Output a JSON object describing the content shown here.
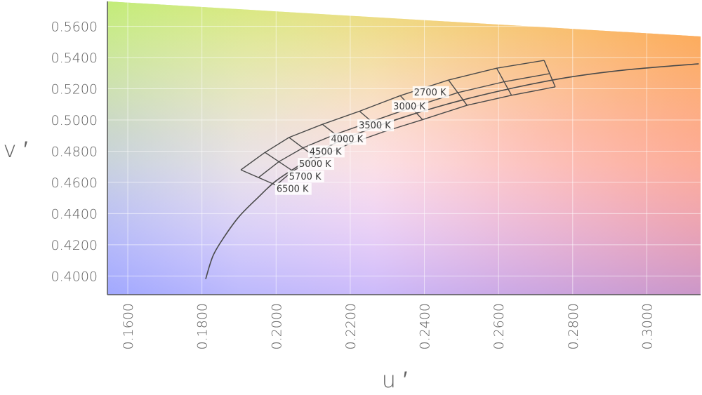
{
  "chart_data": {
    "type": "line",
    "title": "",
    "xlabel": "u ′",
    "ylabel": "v ′",
    "xlim": [
      0.1545,
      0.3145
    ],
    "ylim": [
      0.388,
      0.576
    ],
    "x_ticks": [
      "0.1600",
      "0.1800",
      "0.2000",
      "0.2200",
      "0.2400",
      "0.2600",
      "0.2800",
      "0.3000"
    ],
    "y_ticks": [
      "0.4000",
      "0.4200",
      "0.4400",
      "0.4600",
      "0.4800",
      "0.5000",
      "0.5200",
      "0.5400",
      "0.5600"
    ],
    "grid": true,
    "background": "CIE 1976 u′v′ chromaticity colour gradient",
    "series": [
      {
        "type": "line",
        "color": "#4a4a4a",
        "x": [
          0.181,
          0.183,
          0.186,
          0.19,
          0.195,
          0.2,
          0.207,
          0.215,
          0.225,
          0.236,
          0.249,
          0.263,
          0.278,
          0.294,
          0.314
        ],
        "y": [
          0.398,
          0.413,
          0.425,
          0.438,
          0.45,
          0.461,
          0.472,
          0.484,
          0.494,
          0.503,
          0.512,
          0.52,
          0.527,
          0.532,
          0.536
        ]
      }
    ],
    "cct_quadrangles": {
      "color": "#4a4a4a",
      "temperatures": [
        "6500 K",
        "5700 K",
        "5000 K",
        "4500 K",
        "4000 K",
        "3500 K",
        "3000 K",
        "2700 K"
      ],
      "boundary_outer": {
        "x": [
          0.1905,
          0.197,
          0.2035,
          0.2125,
          0.2225,
          0.2335,
          0.2465,
          0.2595,
          0.2723
        ],
        "y": [
          0.468,
          0.4792,
          0.4888,
          0.4972,
          0.5056,
          0.5156,
          0.5256,
          0.5332,
          0.5382
        ]
      },
      "boundary_inner": {
        "x": [
          0.2,
          0.2045,
          0.211,
          0.2195,
          0.229,
          0.2395,
          0.2515,
          0.2635,
          0.2753
        ],
        "y": [
          0.4582,
          0.4673,
          0.4754,
          0.4844,
          0.4924,
          0.5002,
          0.5094,
          0.5158,
          0.5212
        ]
      }
    },
    "annotations": [
      {
        "text": "6500 K",
        "x": 0.2001,
        "y": 0.4538
      },
      {
        "text": "5700 K",
        "x": 0.2035,
        "y": 0.4618
      },
      {
        "text": "5000 K",
        "x": 0.2062,
        "y": 0.4698
      },
      {
        "text": "4500 K",
        "x": 0.209,
        "y": 0.4778
      },
      {
        "text": "4000 K",
        "x": 0.2148,
        "y": 0.4858
      },
      {
        "text": "3500 K",
        "x": 0.2223,
        "y": 0.4945
      },
      {
        "text": "3000 K",
        "x": 0.2316,
        "y": 0.5068
      },
      {
        "text": "2700 K",
        "x": 0.2372,
        "y": 0.5158
      }
    ]
  }
}
